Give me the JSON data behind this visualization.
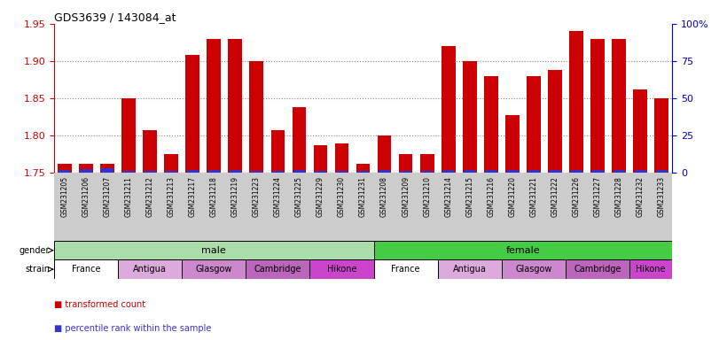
{
  "title": "GDS3639 / 143084_at",
  "samples": [
    "GSM231205",
    "GSM231206",
    "GSM231207",
    "GSM231211",
    "GSM231212",
    "GSM231213",
    "GSM231217",
    "GSM231218",
    "GSM231219",
    "GSM231223",
    "GSM231224",
    "GSM231225",
    "GSM231229",
    "GSM231230",
    "GSM231231",
    "GSM231208",
    "GSM231209",
    "GSM231210",
    "GSM231214",
    "GSM231215",
    "GSM231216",
    "GSM231220",
    "GSM231221",
    "GSM231222",
    "GSM231226",
    "GSM231227",
    "GSM231228",
    "GSM231232",
    "GSM231233"
  ],
  "red_values": [
    1.762,
    1.762,
    1.762,
    1.85,
    1.808,
    1.775,
    1.908,
    1.93,
    1.93,
    1.9,
    1.808,
    1.838,
    1.787,
    1.79,
    1.762,
    1.8,
    1.775,
    1.775,
    1.92,
    1.9,
    1.88,
    1.828,
    1.88,
    1.888,
    1.94,
    1.93,
    1.93,
    1.862,
    1.85
  ],
  "blue_heights": [
    0.004,
    0.005,
    0.006,
    0.003,
    0.003,
    0.003,
    0.004,
    0.004,
    0.004,
    0.003,
    0.003,
    0.004,
    0.003,
    0.003,
    0.003,
    0.004,
    0.003,
    0.003,
    0.004,
    0.004,
    0.004,
    0.004,
    0.004,
    0.004,
    0.004,
    0.004,
    0.004,
    0.004,
    0.004
  ],
  "ylim_left": [
    1.75,
    1.95
  ],
  "ylim_right": [
    0,
    100
  ],
  "yticks_left": [
    1.75,
    1.8,
    1.85,
    1.9,
    1.95
  ],
  "yticks_right": [
    0,
    25,
    50,
    75,
    100
  ],
  "ytick_labels_right": [
    "0",
    "25",
    "50",
    "75",
    "100%"
  ],
  "bar_bottom": 1.75,
  "red_color": "#cc0000",
  "blue_color": "#3333cc",
  "gender_male_color": "#aaddaa",
  "gender_female_color": "#44cc44",
  "strain_colors": [
    "#ffffff",
    "#ddaadd",
    "#cc88cc",
    "#bb66bb",
    "#cc44cc"
  ],
  "male_count": 15,
  "female_count": 14,
  "strains": [
    "France",
    "Antigua",
    "Glasgow",
    "Cambridge",
    "Hikone"
  ],
  "male_strain_counts": [
    3,
    3,
    3,
    3,
    3
  ],
  "female_strain_counts": [
    3,
    3,
    3,
    3,
    2
  ],
  "right_axis_color": "#0000cc",
  "dotted_grid_color": "#888888",
  "xticklabel_bg": "#cccccc"
}
